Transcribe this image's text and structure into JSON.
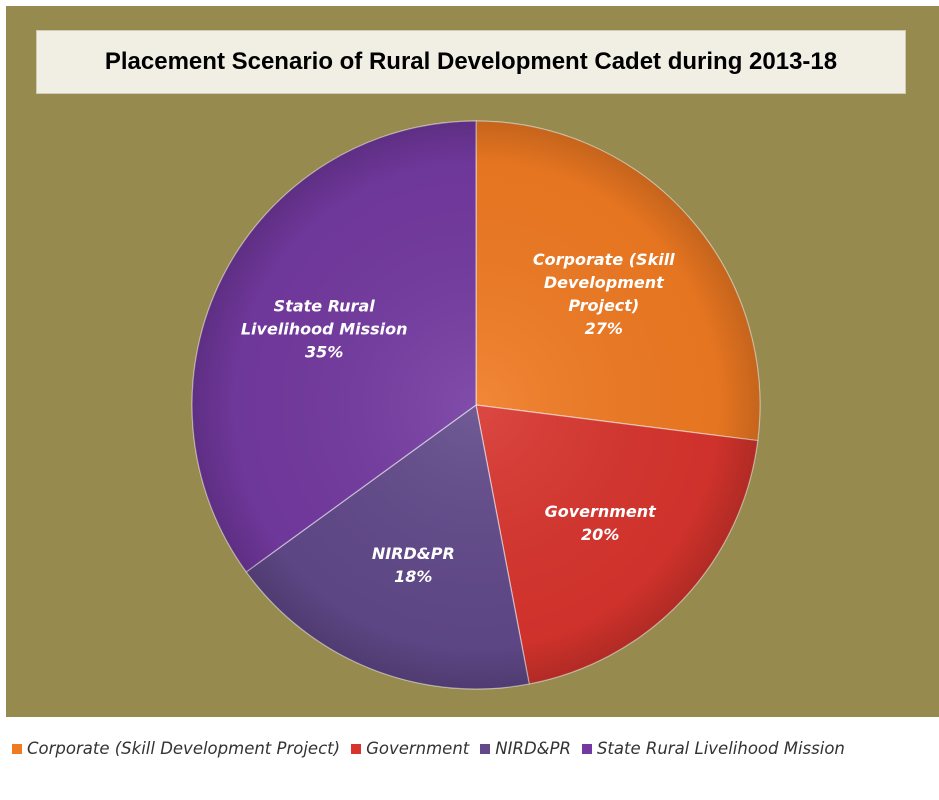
{
  "chart_data": {
    "type": "pie",
    "title": "Placement Scenario of Rural Development Cadet during 2013-18",
    "slices": [
      {
        "label": "Corporate (Skill Development Project)",
        "label_lines": [
          "Corporate (Skill",
          "Development",
          "Project)"
        ],
        "value": 27,
        "value_label": "27%",
        "color": "#f07a22"
      },
      {
        "label": "Government",
        "label_lines": [
          "Government"
        ],
        "value": 20,
        "value_label": "20%",
        "color": "#d8342d"
      },
      {
        "label": "NIRD&PR",
        "label_lines": [
          "NIRD&PR"
        ],
        "value": 18,
        "value_label": "18%",
        "color": "#61498a"
      },
      {
        "label": "State Rural Livelihood Mission",
        "label_lines": [
          "State Rural",
          "Livelihood Mission"
        ],
        "value": 35,
        "value_label": "35%",
        "color": "#7339a0"
      }
    ],
    "legend_position": "bottom",
    "background_color": "#968a4e"
  }
}
